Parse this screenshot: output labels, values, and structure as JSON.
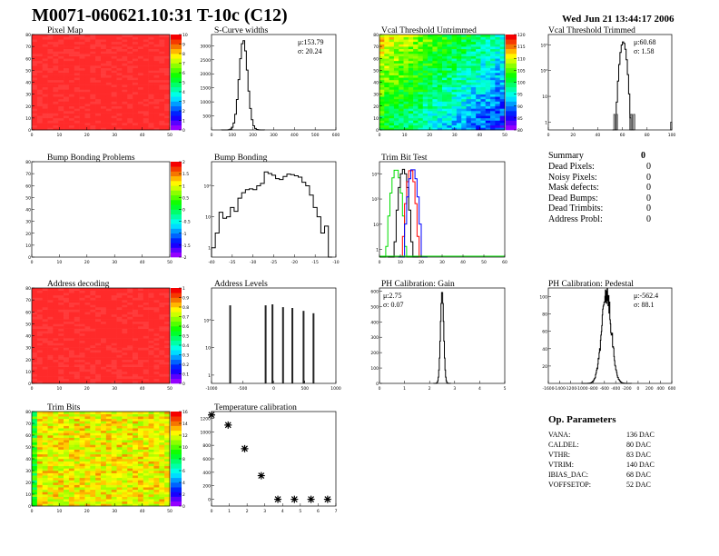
{
  "header": {
    "title": "M0071-060621.10:31 T-10c (C12)",
    "date": "Wed Jun 21 13:44:17 2006"
  },
  "colors": {
    "hist": "#000000",
    "frame": "#000000",
    "trim_series": [
      "#00dd00",
      "#000000",
      "#ff0000",
      "#0000ff"
    ]
  },
  "chart_data": [
    {
      "id": "pixel-map",
      "type": "heatmap",
      "title": "Pixel Map",
      "xlim": [
        0,
        52
      ],
      "ylim": [
        0,
        80
      ],
      "xticks": [
        "0",
        "10",
        "20",
        "30",
        "40",
        "50"
      ],
      "yticks": [
        "0",
        "10",
        "20",
        "30",
        "40",
        "50",
        "60",
        "70",
        "80"
      ],
      "zlim": [
        0,
        10
      ],
      "zticks": [
        "0",
        "1",
        "2",
        "3",
        "4",
        "5",
        "6",
        "7",
        "8",
        "9",
        "10"
      ],
      "value": 10,
      "grid": false
    },
    {
      "id": "s-curve-widths",
      "type": "bar",
      "title": "S-Curve widths",
      "xlim": [
        0,
        600
      ],
      "ylim": [
        0,
        3400
      ],
      "xticks": [
        "0",
        "100",
        "200",
        "300",
        "400",
        "500",
        "600"
      ],
      "yticks": [
        "500",
        "1000",
        "1500",
        "2000",
        "2500",
        "3000"
      ],
      "stats": {
        "mean": "μ:153.79",
        "sigma": "σ: 20.24"
      },
      "mean": 153.79,
      "sigma": 20.24,
      "peak": 3200,
      "bin": 8
    },
    {
      "id": "vcal-untrimmed",
      "type": "heatmap",
      "title": "Vcal Threshold Untrimmed",
      "xlim": [
        0,
        52
      ],
      "ylim": [
        0,
        80
      ],
      "xticks": [
        "0",
        "10",
        "20",
        "30",
        "40",
        "50"
      ],
      "yticks": [
        "0",
        "10",
        "20",
        "30",
        "40",
        "50",
        "60",
        "70",
        "80"
      ],
      "zlim": [
        80,
        120
      ],
      "zticks": [
        "80",
        "85",
        "90",
        "95",
        "100",
        "105",
        "110",
        "115",
        "120"
      ],
      "value_range": [
        85,
        112
      ]
    },
    {
      "id": "vcal-trimmed",
      "type": "bar",
      "title": "Vcal Threshold Trimmed",
      "log": true,
      "xlim": [
        0,
        100
      ],
      "ylim": [
        0.5,
        2500
      ],
      "xticks": [
        "0",
        "20",
        "40",
        "60",
        "80",
        "100"
      ],
      "yticks": [
        "1",
        "10",
        "10²",
        "10³"
      ],
      "stats": {
        "mean": "μ:60.68",
        "sigma": "σ: 1.58"
      },
      "mean": 60.68,
      "sigma": 1.58,
      "peak": 1300,
      "bin": 1,
      "outliers": [
        [
          53,
          2
        ],
        [
          55,
          2
        ],
        [
          66,
          2
        ],
        [
          67,
          2
        ],
        [
          69,
          2
        ],
        [
          99,
          1
        ]
      ]
    },
    {
      "id": "bump-bonding-problems",
      "type": "heatmap",
      "title": "Bump Bonding Problems",
      "xlim": [
        0,
        52
      ],
      "ylim": [
        0,
        80
      ],
      "xticks": [
        "0",
        "10",
        "20",
        "30",
        "40",
        "50"
      ],
      "yticks": [
        "0",
        "10",
        "20",
        "30",
        "40",
        "50",
        "60",
        "70",
        "80"
      ],
      "zlim": [
        -2,
        2
      ],
      "zticks": [
        "-2",
        "-1.5",
        "-1",
        "-0.5",
        "0",
        "0.5",
        "1",
        "1.5",
        "2"
      ],
      "value": null
    },
    {
      "id": "bump-bonding",
      "type": "bar",
      "title": "Bump Bonding",
      "log": true,
      "xlim": [
        -40,
        -7
      ],
      "ylim": [
        0.5,
        600
      ],
      "xticks": [
        "-40",
        "-35",
        "-30",
        "-25",
        "-20",
        "-15",
        "-10"
      ],
      "yticks": [
        "1",
        "10",
        "10²"
      ],
      "bin_start": -40,
      "bin": 1,
      "values": [
        1,
        3,
        14,
        9,
        10,
        20,
        15,
        40,
        60,
        75,
        80,
        75,
        100,
        120,
        280,
        250,
        220,
        170,
        160,
        200,
        240,
        230,
        210,
        190,
        130,
        100,
        50,
        20,
        10,
        3,
        5,
        0
      ]
    },
    {
      "id": "trim-bit-test",
      "type": "bar",
      "title": "Trim Bit Test",
      "log": true,
      "xlim": [
        0,
        60
      ],
      "ylim": [
        0.5,
        3000
      ],
      "xticks": [
        "0",
        "10",
        "20",
        "30",
        "40",
        "50",
        "60"
      ],
      "yticks": [
        "1",
        "10",
        "10²",
        "10³"
      ],
      "series": [
        {
          "mean": 8,
          "sigma": 1.2,
          "peak": 1500
        },
        {
          "mean": 11.5,
          "sigma": 1.1,
          "peak": 1500
        },
        {
          "mean": 15,
          "sigma": 1.0,
          "peak": 1500
        },
        {
          "mean": 16,
          "sigma": 1.1,
          "peak": 1600
        }
      ]
    },
    {
      "id": "address-decoding",
      "type": "heatmap",
      "title": "Address decoding",
      "xlim": [
        0,
        52
      ],
      "ylim": [
        0,
        80
      ],
      "xticks": [
        "0",
        "10",
        "20",
        "30",
        "40",
        "50"
      ],
      "yticks": [
        "0",
        "10",
        "20",
        "30",
        "40",
        "50",
        "60",
        "70",
        "80"
      ],
      "zlim": [
        0,
        1
      ],
      "zticks": [
        "0",
        "0.1",
        "0.2",
        "0.3",
        "0.4",
        "0.5",
        "0.6",
        "0.7",
        "0.8",
        "0.9",
        "1"
      ],
      "value": 1
    },
    {
      "id": "address-levels",
      "type": "bar",
      "title": "Address Levels",
      "log": true,
      "xlim": [
        -1000,
        1000
      ],
      "ylim": [
        0.5,
        1500
      ],
      "xticks": [
        "-1000",
        "-500",
        "0",
        "500",
        "1000"
      ],
      "yticks": [
        "1",
        "10",
        "10²"
      ],
      "peaks": [
        [
          -700,
          350
        ],
        [
          -130,
          350
        ],
        [
          -20,
          380
        ],
        [
          150,
          300
        ],
        [
          300,
          280
        ],
        [
          480,
          220
        ],
        [
          640,
          180
        ]
      ]
    },
    {
      "id": "ph-gain",
      "type": "bar",
      "title": "PH Calibration: Gain",
      "xlim": [
        0,
        5.5
      ],
      "ylim": [
        0,
        620
      ],
      "xticks": [
        "0",
        "1",
        "2",
        "3",
        "4",
        "5"
      ],
      "yticks": [
        "0",
        "100",
        "200",
        "300",
        "400",
        "500",
        "600"
      ],
      "stats": {
        "mean": "μ:2.75",
        "sigma": "σ: 0.07"
      },
      "mean": 2.75,
      "sigma": 0.07,
      "peak": 600,
      "bin": 0.025
    },
    {
      "id": "ph-pedestal",
      "type": "bar",
      "title": "PH Calibration: Pedestal",
      "xlim": [
        -1600,
        600
      ],
      "ylim": [
        0,
        110
      ],
      "xticks": [
        "-1600",
        "-1400",
        "-1200",
        "-1000",
        "-800",
        "-600",
        "-400",
        "-200",
        "0",
        "200",
        "400",
        "600"
      ],
      "yticks": [
        "20",
        "40",
        "60",
        "80",
        "100"
      ],
      "stats": {
        "mean": "μ:-562.4",
        "sigma": "σ: 88.1"
      },
      "mean": -562.4,
      "sigma": 88.1,
      "peak": 100,
      "bin": 8
    },
    {
      "id": "trim-bits",
      "type": "heatmap",
      "title": "Trim Bits",
      "xlim": [
        0,
        52
      ],
      "ylim": [
        0,
        80
      ],
      "xticks": [
        "0",
        "10",
        "20",
        "30",
        "40",
        "50"
      ],
      "yticks": [
        "0",
        "10",
        "20",
        "30",
        "40",
        "50",
        "60",
        "70",
        "80"
      ],
      "zlim": [
        0,
        16
      ],
      "zticks": [
        "0",
        "2",
        "4",
        "6",
        "8",
        "10",
        "12",
        "14",
        "16"
      ],
      "value_range": [
        11,
        14
      ]
    },
    {
      "id": "temperature-calibration",
      "type": "scatter",
      "title": "Temperature calibration",
      "xlim": [
        0,
        7.5
      ],
      "ylim": [
        -100,
        1300
      ],
      "xticks": [
        "0",
        "1",
        "2",
        "3",
        "4",
        "5",
        "6",
        "7"
      ],
      "yticks": [
        "0",
        "200",
        "400",
        "600",
        "800",
        "1000",
        "1200"
      ],
      "points": [
        [
          0,
          1250
        ],
        [
          1,
          1100
        ],
        [
          2,
          750
        ],
        [
          3,
          350
        ],
        [
          4,
          0
        ],
        [
          5,
          0
        ],
        [
          6,
          0
        ],
        [
          7,
          0
        ]
      ]
    }
  ],
  "summary": {
    "title": "Summary",
    "total": "0",
    "items": [
      {
        "label": "Dead Pixels:",
        "value": "0"
      },
      {
        "label": "Noisy Pixels:",
        "value": "0"
      },
      {
        "label": "Mask defects:",
        "value": "0"
      },
      {
        "label": "Dead Bumps:",
        "value": "0"
      },
      {
        "label": "Dead Trimbits:",
        "value": "0"
      },
      {
        "label": "Address Probl:",
        "value": "0"
      }
    ]
  },
  "op_parameters": {
    "title": "Op. Parameters",
    "items": [
      {
        "label": "VANA:",
        "value": "136 DAC"
      },
      {
        "label": "CALDEL:",
        "value": "80 DAC"
      },
      {
        "label": "VTHR:",
        "value": "83 DAC"
      },
      {
        "label": "VTRIM:",
        "value": "140 DAC"
      },
      {
        "label": "IBIAS_DAC:",
        "value": "68 DAC"
      },
      {
        "label": "VOFFSETOP:",
        "value": "52 DAC"
      }
    ]
  }
}
